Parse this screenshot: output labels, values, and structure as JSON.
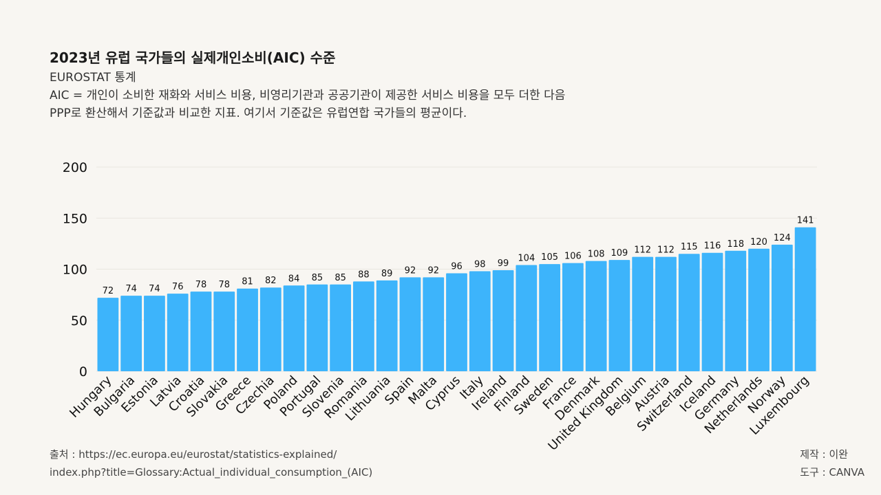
{
  "header": {
    "title": "2023년 유럽 국가들의 실제개인소비(AIC) 수준",
    "subtitle": "EUROSTAT 통계",
    "desc_line1": "AIC = 개인이 소비한 재화와 서비스 비용, 비영리기관과 공공기관이 제공한 서비스 비용을 모두 더한 다음",
    "desc_line2": "PPP로 환산해서 기준값과 비교한 지표. 여기서 기준값은 유럽연합 국가들의 평균이다."
  },
  "chart_data": {
    "type": "bar",
    "categories": [
      "Hungary",
      "Bulgaria",
      "Estonia",
      "Latvia",
      "Croatia",
      "Slovakia",
      "Greece",
      "Czechia",
      "Poland",
      "Portugal",
      "Slovenia",
      "Romania",
      "Lithuania",
      "Spain",
      "Malta",
      "Cyprus",
      "Italy",
      "Ireland",
      "Finland",
      "Sweden",
      "France",
      "Denmark",
      "United Kingdom",
      "Belgium",
      "Austria",
      "Switzerland",
      "Iceland",
      "Germany",
      "Netherlands",
      "Norway",
      "Luxembourg"
    ],
    "values": [
      72,
      74,
      74,
      76,
      78,
      78,
      81,
      82,
      84,
      85,
      85,
      88,
      89,
      92,
      92,
      96,
      98,
      99,
      104,
      105,
      106,
      108,
      109,
      112,
      112,
      115,
      116,
      118,
      120,
      124,
      141
    ],
    "ylim": [
      0,
      200
    ],
    "yticks": [
      0,
      50,
      100,
      150,
      200
    ],
    "bar_color": "#3db4fb",
    "grid_color": "#e9e6e0"
  },
  "footer": {
    "source_line1": "출처 : https://ec.europa.eu/eurostat/statistics-explained/",
    "source_line2": "index.php?title=Glossary:Actual_individual_consumption_(AIC)",
    "maker": "제작 : 이완",
    "tool": "도구 : CANVA"
  }
}
